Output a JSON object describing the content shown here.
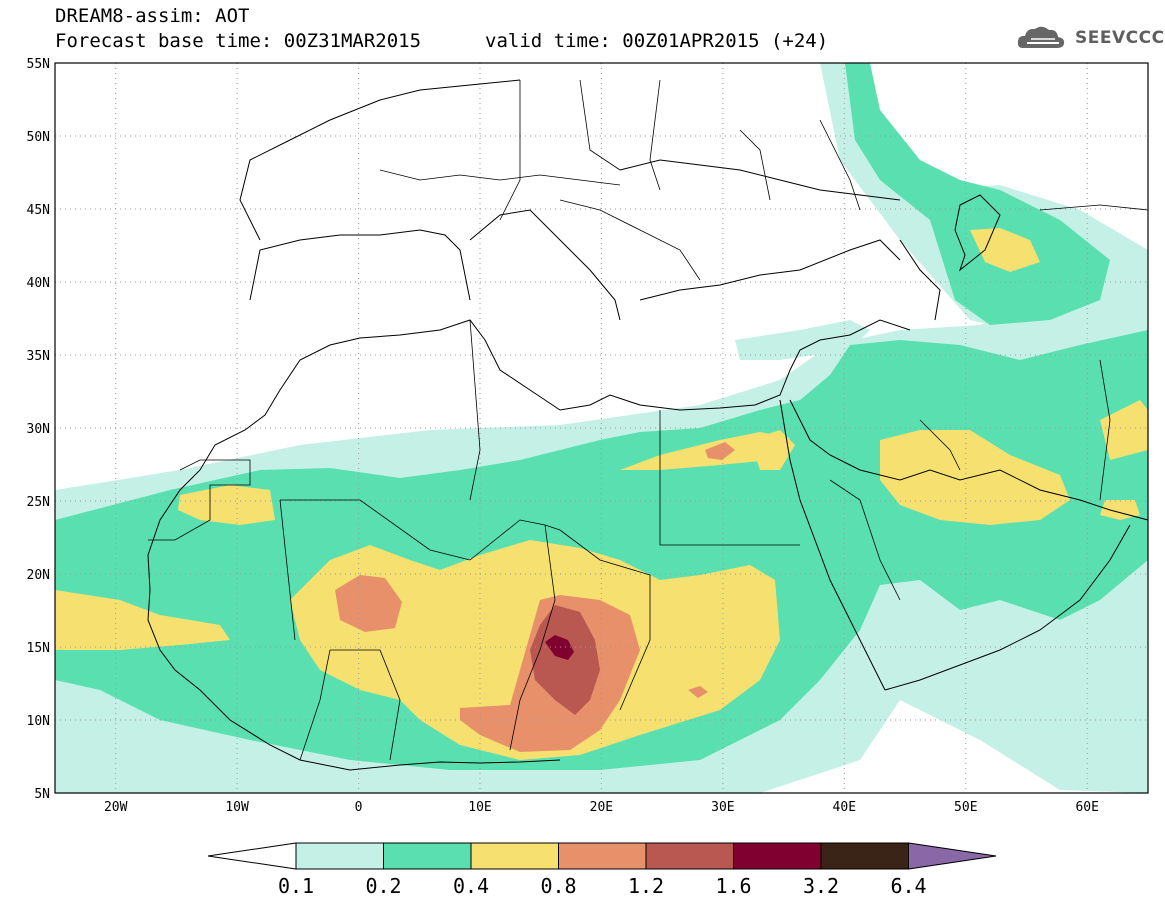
{
  "header": {
    "line1": "DREAM8-assim: AOT",
    "line2": "Forecast base time: 00Z31MAR2015",
    "valid": "valid time: 00Z01APR2015 (+24)"
  },
  "logo": {
    "text": "SEEVCCC",
    "icon": "cloud-logo-icon"
  },
  "map": {
    "lon_range": [
      -25,
      65
    ],
    "lat_range": [
      5,
      55
    ],
    "lon_ticks": [
      {
        "value": -20,
        "label": "20W"
      },
      {
        "value": -10,
        "label": "10W"
      },
      {
        "value": 0,
        "label": "0"
      },
      {
        "value": 10,
        "label": "10E"
      },
      {
        "value": 20,
        "label": "20E"
      },
      {
        "value": 30,
        "label": "30E"
      },
      {
        "value": 40,
        "label": "40E"
      },
      {
        "value": 50,
        "label": "50E"
      },
      {
        "value": 60,
        "label": "60E"
      }
    ],
    "lat_ticks": [
      {
        "value": 5,
        "label": "5N"
      },
      {
        "value": 10,
        "label": "10N"
      },
      {
        "value": 15,
        "label": "15N"
      },
      {
        "value": 20,
        "label": "20N"
      },
      {
        "value": 25,
        "label": "25N"
      },
      {
        "value": 30,
        "label": "30N"
      },
      {
        "value": 35,
        "label": "35N"
      },
      {
        "value": 40,
        "label": "40N"
      },
      {
        "value": 45,
        "label": "45N"
      },
      {
        "value": 50,
        "label": "50N"
      },
      {
        "value": 55,
        "label": "55N"
      }
    ],
    "grid": "dotted"
  },
  "colorbar": {
    "levels": [
      "0.1",
      "0.2",
      "0.4",
      "0.8",
      "1.2",
      "1.6",
      "3.2",
      "6.4"
    ],
    "colors": [
      "#c4f0e6",
      "#5ae0b0",
      "#f5e070",
      "#e8906a",
      "#b85850",
      "#800030",
      "#3a2418"
    ],
    "under_color": "#ffffff",
    "over_color": "#8a68a8"
  },
  "aot_colors": {
    "c1": "#c4f0e6",
    "c2": "#5ae0b0",
    "c3": "#f5e070",
    "c4": "#e8906a",
    "c5": "#b85850",
    "c6": "#800030"
  }
}
